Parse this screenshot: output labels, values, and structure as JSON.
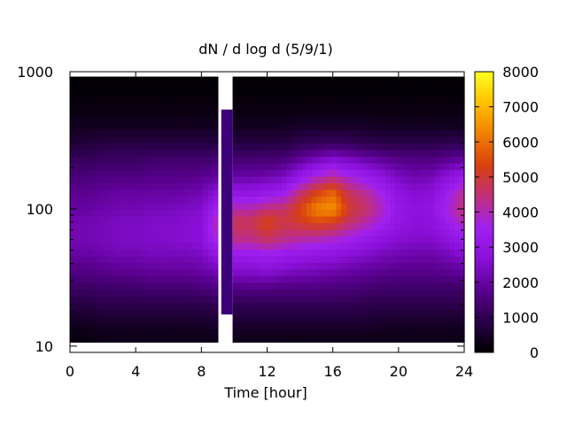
{
  "chart_data": {
    "type": "heatmap",
    "title": "dN / d log d (5/9/1)",
    "xlabel": "Time [hour]",
    "ylabel": "",
    "x_range": [
      0,
      24
    ],
    "x_ticks": [
      "0",
      "4",
      "8",
      "12",
      "16",
      "20",
      "24"
    ],
    "x_tick_values": [
      0,
      4,
      8,
      12,
      16,
      20,
      24
    ],
    "y_scale": "log",
    "y_range": [
      9,
      1000
    ],
    "y_ticks": [
      "10",
      "100",
      "1000"
    ],
    "y_tick_values": [
      10,
      100,
      1000
    ],
    "colorbar": {
      "range": [
        0,
        8000
      ],
      "ticks": [
        "0",
        "1000",
        "2000",
        "3000",
        "4000",
        "5000",
        "6000",
        "7000",
        "8000"
      ],
      "tick_values": [
        0,
        1000,
        2000,
        3000,
        4000,
        5000,
        6000,
        7000,
        8000
      ],
      "palette": [
        "#000000",
        "#2a004a",
        "#5a0090",
        "#8a10d8",
        "#a020f0",
        "#c0307a",
        "#d84010",
        "#f08000",
        "#ffc000",
        "#ffff20"
      ]
    },
    "data_gap_hours": [
      9.1,
      10.0
    ],
    "time_hours": [
      0,
      1,
      2,
      3,
      4,
      5,
      6,
      7,
      8,
      9,
      10,
      11,
      12,
      13,
      14,
      15,
      16,
      17,
      18,
      19,
      20,
      21,
      22,
      23,
      24
    ],
    "diameter": [
      12,
      15,
      20,
      27,
      35,
      47,
      60,
      80,
      100,
      130,
      170,
      230,
      300,
      400,
      530,
      700,
      900
    ],
    "concentration": [
      [
        200,
        400,
        800,
        1200,
        1600,
        2000,
        2200,
        2200,
        2000,
        1800,
        1500,
        1100,
        700,
        400,
        200,
        100,
        50
      ],
      [
        200,
        400,
        800,
        1200,
        1600,
        2000,
        2200,
        2200,
        2000,
        1800,
        1500,
        1100,
        700,
        400,
        200,
        100,
        50
      ],
      [
        300,
        500,
        900,
        1300,
        1700,
        2100,
        2300,
        2300,
        2100,
        1900,
        1600,
        1200,
        800,
        400,
        200,
        100,
        50
      ],
      [
        300,
        500,
        900,
        1300,
        1800,
        2200,
        2400,
        2400,
        2200,
        2000,
        1600,
        1200,
        800,
        400,
        200,
        100,
        50
      ],
      [
        300,
        500,
        900,
        1300,
        1800,
        2200,
        2400,
        2400,
        2200,
        2000,
        1600,
        1200,
        800,
        400,
        200,
        100,
        50
      ],
      [
        300,
        500,
        900,
        1400,
        1900,
        2300,
        2500,
        2500,
        2300,
        2000,
        1700,
        1300,
        800,
        400,
        200,
        100,
        50
      ],
      [
        300,
        500,
        900,
        1400,
        1900,
        2300,
        2500,
        2500,
        2300,
        2000,
        1700,
        1300,
        800,
        400,
        200,
        100,
        50
      ],
      [
        300,
        500,
        900,
        1400,
        1900,
        2300,
        2600,
        2600,
        2400,
        2100,
        1700,
        1300,
        800,
        400,
        200,
        100,
        50
      ],
      [
        300,
        500,
        900,
        1500,
        2000,
        2400,
        2700,
        2700,
        2500,
        2200,
        1800,
        1300,
        800,
        400,
        200,
        100,
        50
      ],
      [
        300,
        600,
        1000,
        1600,
        2200,
        3000,
        3800,
        4200,
        3600,
        2800,
        2000,
        1400,
        800,
        400,
        200,
        100,
        50
      ],
      [
        null,
        null,
        null,
        null,
        null,
        null,
        null,
        null,
        null,
        null,
        null,
        null,
        null,
        null,
        null,
        null,
        null
      ],
      [
        300,
        600,
        1000,
        1700,
        2500,
        3300,
        4300,
        4800,
        4100,
        3000,
        2100,
        1400,
        800,
        400,
        200,
        100,
        50
      ],
      [
        300,
        600,
        1000,
        1700,
        2600,
        3500,
        4600,
        5400,
        4500,
        3200,
        2200,
        1400,
        800,
        400,
        200,
        100,
        50
      ],
      [
        300,
        600,
        1000,
        1600,
        2400,
        3300,
        4300,
        4900,
        4600,
        3500,
        2400,
        1500,
        800,
        400,
        200,
        100,
        50
      ],
      [
        300,
        600,
        1000,
        1600,
        2300,
        3100,
        4100,
        5100,
        5400,
        4500,
        3200,
        1900,
        1000,
        500,
        200,
        100,
        50
      ],
      [
        300,
        600,
        1000,
        1600,
        2200,
        3000,
        4000,
        5400,
        6300,
        5400,
        3900,
        2300,
        1100,
        500,
        200,
        100,
        50
      ],
      [
        300,
        600,
        1000,
        1500,
        2100,
        2900,
        3800,
        5200,
        6500,
        5900,
        4300,
        2600,
        1200,
        500,
        200,
        100,
        50
      ],
      [
        300,
        600,
        1000,
        1500,
        2000,
        2700,
        3500,
        4600,
        5100,
        4700,
        3800,
        2400,
        1100,
        500,
        200,
        100,
        50
      ],
      [
        300,
        600,
        900,
        1400,
        1900,
        2500,
        3200,
        4100,
        4600,
        4300,
        3400,
        2100,
        1000,
        500,
        200,
        100,
        50
      ],
      [
        300,
        500,
        900,
        1300,
        1800,
        2300,
        2800,
        3600,
        3900,
        3600,
        2900,
        1900,
        900,
        400,
        200,
        100,
        50
      ],
      [
        300,
        500,
        900,
        1300,
        1700,
        2200,
        2600,
        3000,
        3100,
        2900,
        2400,
        1700,
        900,
        400,
        200,
        100,
        50
      ],
      [
        300,
        500,
        900,
        1300,
        1700,
        2100,
        2500,
        2700,
        2800,
        2600,
        2200,
        1600,
        900,
        400,
        200,
        100,
        50
      ],
      [
        300,
        500,
        900,
        1300,
        1700,
        2100,
        2500,
        2800,
        2900,
        2700,
        2300,
        1600,
        900,
        400,
        200,
        100,
        50
      ],
      [
        300,
        500,
        900,
        1300,
        1800,
        2300,
        2800,
        3400,
        3700,
        3500,
        2800,
        1800,
        1000,
        400,
        200,
        100,
        50
      ],
      [
        300,
        500,
        900,
        1300,
        1900,
        2600,
        3300,
        4000,
        4600,
        4300,
        3300,
        2000,
        1000,
        400,
        200,
        100,
        50
      ]
    ]
  }
}
